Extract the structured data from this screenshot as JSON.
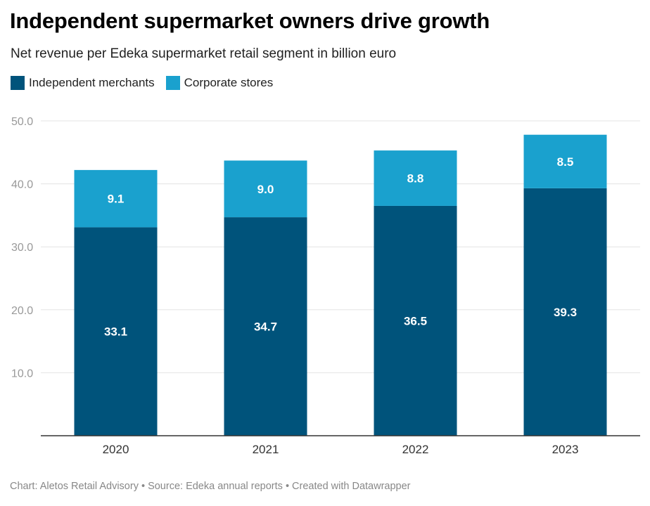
{
  "title": "Independent supermarket owners drive growth",
  "subtitle": "Net revenue per Edeka supermarket retail segment in billion euro",
  "footer": "Chart: Aletos Retail Advisory • Source: Edeka annual reports • Created with Datawrapper",
  "colors": {
    "independent": "#00537b",
    "corporate": "#1aa1ce",
    "grid": "#e3e3e3",
    "axis": "#333333",
    "tick_text": "#999999"
  },
  "chart_data": {
    "type": "bar",
    "stacked": true,
    "categories": [
      "2020",
      "2021",
      "2022",
      "2023"
    ],
    "series": [
      {
        "name": "Independent merchants",
        "values": [
          33.1,
          34.7,
          36.5,
          39.3
        ]
      },
      {
        "name": "Corporate stores",
        "values": [
          9.1,
          9.0,
          8.8,
          8.5
        ]
      }
    ],
    "value_labels": [
      [
        "33.1",
        "34.7",
        "36.5",
        "39.3"
      ],
      [
        "9.1",
        "9.0",
        "8.8",
        "8.5"
      ]
    ],
    "ylim": [
      0,
      50
    ],
    "yticks": [
      "10.0",
      "20.0",
      "30.0",
      "40.0",
      "50.0"
    ],
    "grid": true,
    "legend": "top-left"
  }
}
